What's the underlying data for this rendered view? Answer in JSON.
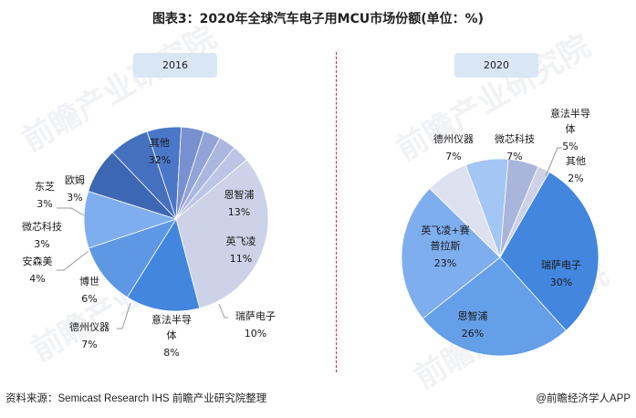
{
  "title": "图表3：2020年全球汽车电子用MCU市场份额(单位：%)",
  "footer": {
    "source": "资料来源：Semicast Research IHS 前瞻产业研究院整理",
    "credit": "@前瞻经济学人APP"
  },
  "watermark": "前瞻产业研究院",
  "colors": {
    "divider": "#e02020",
    "year_box": "#d9e6f6"
  },
  "chart_data": [
    {
      "type": "pie",
      "title": "2016",
      "unit": "%",
      "slices": [
        {
          "name": "其他",
          "value": 32,
          "label": "32%",
          "color": "#cdd2e8"
        },
        {
          "name": "恩智浦",
          "value": 13,
          "label": "13%",
          "color": "#4286de"
        },
        {
          "name": "英飞凌",
          "value": 11,
          "label": "11%",
          "color": "#5e98e4"
        },
        {
          "name": "瑞萨电子",
          "value": 10,
          "label": "10%",
          "color": "#7eaeee"
        },
        {
          "name": "意法半导体",
          "value": 8,
          "label": "8%",
          "color": "#3d67b2"
        },
        {
          "name": "德州仪器",
          "value": 7,
          "label": "7%",
          "color": "#4570bd"
        },
        {
          "name": "博世",
          "value": 6,
          "label": "6%",
          "color": "#4a77c8"
        },
        {
          "name": "安森美",
          "value": 4,
          "label": "4%",
          "color": "#7890cf"
        },
        {
          "name": "微芯科技",
          "value": 3,
          "label": "3%",
          "color": "#93a3d7"
        },
        {
          "name": "东芝",
          "value": 3,
          "label": "3%",
          "color": "#abb7df"
        },
        {
          "name": "欧姆",
          "value": 3,
          "label": "3%",
          "color": "#bcc5e5"
        }
      ]
    },
    {
      "type": "pie",
      "title": "2020",
      "unit": "%",
      "slices": [
        {
          "name": "瑞萨电子",
          "value": 30,
          "label": "30%",
          "color": "#4286de"
        },
        {
          "name": "恩智浦",
          "value": 26,
          "label": "26%",
          "color": "#659fe8"
        },
        {
          "name": "英飞凌+赛普拉斯",
          "value": 23,
          "label": "23%",
          "color": "#7eaeee"
        },
        {
          "name": "德州仪器",
          "value": 7,
          "label": "7%",
          "color": "#dde1f0"
        },
        {
          "name": "微芯科技",
          "value": 7,
          "label": "7%",
          "color": "#a3c6f4"
        },
        {
          "name": "意法半导体",
          "value": 5,
          "label": "5%",
          "color": "#a9b5db"
        },
        {
          "name": "其他",
          "value": 2,
          "label": "2%",
          "color": "#cdd2e8"
        }
      ]
    }
  ]
}
